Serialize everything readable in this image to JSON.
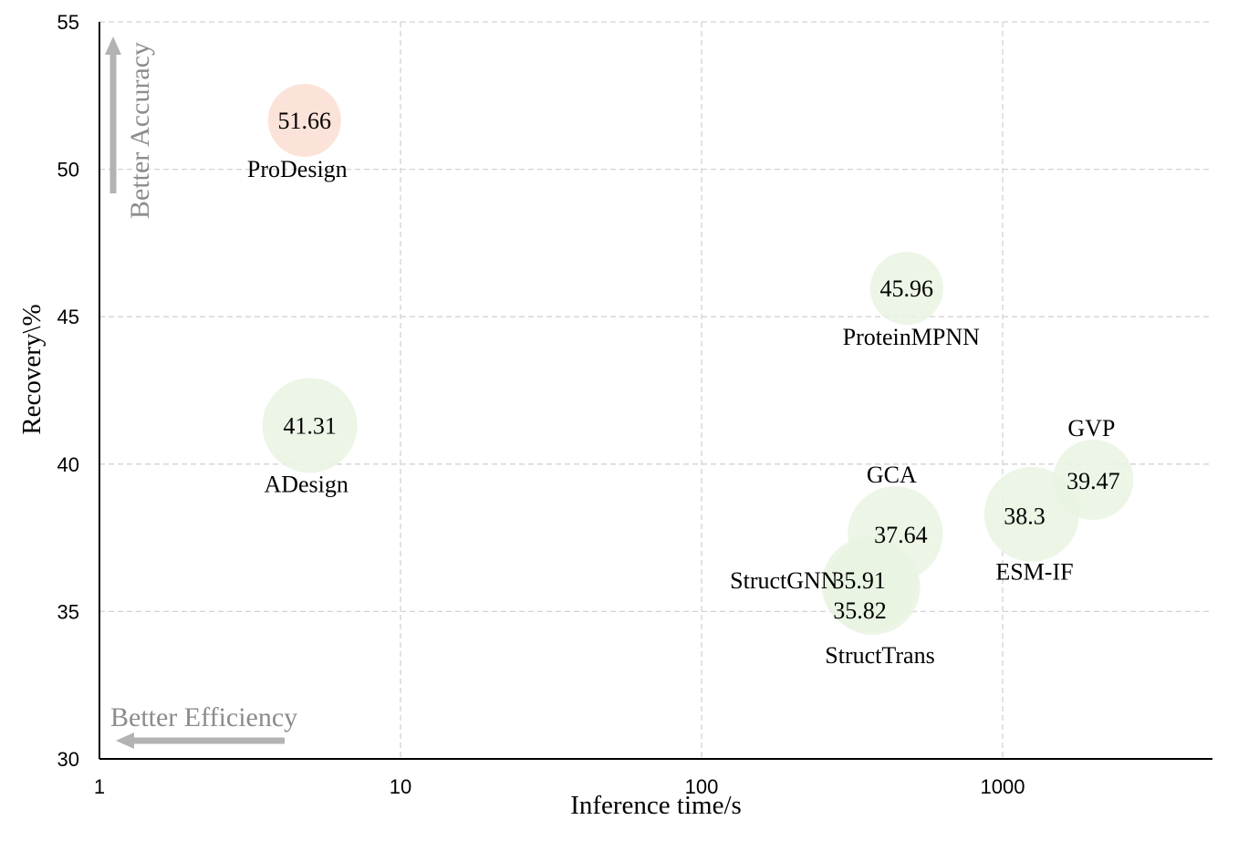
{
  "chart_data": {
    "type": "scatter",
    "xlabel": "Inference time/s",
    "ylabel": "Recovery\\%",
    "xscale": "log",
    "xlim": [
      1,
      5000
    ],
    "ylim": [
      30,
      55
    ],
    "x_ticks": [
      "1",
      "10",
      "100",
      "1000"
    ],
    "y_ticks": [
      "30",
      "35",
      "40",
      "45",
      "50",
      "55"
    ],
    "grid": true,
    "annotations": [
      "Better Accuracy",
      "Better Efficiency"
    ],
    "colors": {
      "highlight": "#fbe3d9",
      "default": "#e9f3e2",
      "arrow": "#b3b3b3"
    },
    "points": [
      {
        "name": "ProDesign",
        "x": 4.8,
        "y": 51.66,
        "value": "51.66",
        "size": 1.0,
        "highlight": true
      },
      {
        "name": "ProteinMPNN",
        "x": 480,
        "y": 45.96,
        "value": "45.96",
        "size": 1.0,
        "highlight": false
      },
      {
        "name": "ADesign",
        "x": 5.0,
        "y": 41.31,
        "value": "41.31",
        "size": 1.3,
        "highlight": false
      },
      {
        "name": "GVP",
        "x": 2000,
        "y": 39.47,
        "value": "39.47",
        "size": 1.1,
        "highlight": false
      },
      {
        "name": "ESM-IF",
        "x": 1250,
        "y": 38.3,
        "value": "38.3",
        "size": 1.3,
        "highlight": false
      },
      {
        "name": "GCA",
        "x": 440,
        "y": 37.64,
        "value": "37.64",
        "size": 1.3,
        "highlight": false
      },
      {
        "name": "StructGNN",
        "x": 360,
        "y": 35.91,
        "value": "35.91",
        "size": 1.3,
        "highlight": false
      },
      {
        "name": "StructTrans",
        "x": 370,
        "y": 35.82,
        "value": "35.82",
        "size": 1.3,
        "highlight": false
      }
    ]
  }
}
